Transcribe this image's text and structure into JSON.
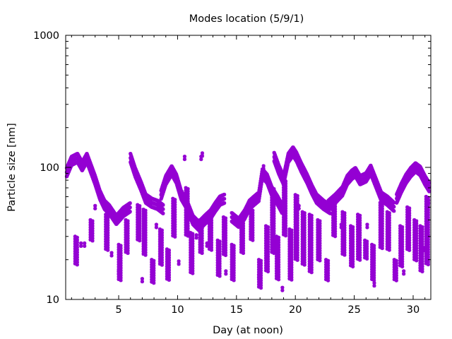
{
  "chart_data": {
    "type": "scatter",
    "title": "Modes location (5/9/1)",
    "xlabel": "Day (at noon)",
    "ylabel": "Particle size [nm]",
    "xlim": [
      0.5,
      31.5
    ],
    "ylim": [
      10,
      1000
    ],
    "yscale": "log",
    "grid": false,
    "legend": "none",
    "x_ticks": [
      5,
      10,
      15,
      20,
      25,
      30
    ],
    "x_tick_labels": [
      "5",
      "10",
      "15",
      "20",
      "25",
      "30"
    ],
    "y_ticks": [
      10,
      100,
      1000
    ],
    "y_tick_labels": [
      "10",
      "100",
      "1000"
    ],
    "marker_color": "#9400d3",
    "marker": "star",
    "series": [
      {
        "traces": [
          [
            [
              0.5,
              88
            ],
            [
              1.0,
              112
            ],
            [
              1.5,
              118
            ],
            [
              1.9,
              102
            ],
            [
              2.3,
              118
            ],
            [
              2.6,
              100
            ],
            [
              3.0,
              80
            ],
            [
              3.4,
              62
            ],
            [
              3.8,
              52
            ],
            [
              4.2,
              48
            ],
            [
              4.8,
              40
            ],
            [
              5.4,
              46
            ],
            [
              6.0,
              50
            ]
          ],
          [
            [
              6.0,
              118
            ],
            [
              6.4,
              92
            ],
            [
              6.9,
              72
            ],
            [
              7.3,
              58
            ],
            [
              7.8,
              54
            ],
            [
              8.3,
              52
            ],
            [
              8.8,
              48
            ]
          ],
          [
            [
              8.6,
              62
            ],
            [
              9.0,
              80
            ],
            [
              9.5,
              95
            ],
            [
              9.9,
              82
            ],
            [
              10.3,
              62
            ],
            [
              10.8,
              52
            ],
            [
              11.3,
              40
            ],
            [
              11.8,
              36
            ],
            [
              12.3,
              40
            ],
            [
              12.8,
              44
            ],
            [
              13.2,
              50
            ],
            [
              13.6,
              56
            ],
            [
              14.0,
              58
            ]
          ],
          [
            [
              14.6,
              42
            ],
            [
              15.2,
              38
            ],
            [
              15.7,
              44
            ],
            [
              16.1,
              52
            ],
            [
              16.5,
              56
            ],
            [
              16.9,
              60
            ],
            [
              17.2,
              90
            ],
            [
              17.6,
              82
            ],
            [
              18.0,
              66
            ],
            [
              18.5,
              56
            ],
            [
              18.9,
              48
            ]
          ],
          [
            [
              18.2,
              120
            ],
            [
              18.6,
              96
            ],
            [
              19.0,
              80
            ],
            [
              19.4,
              118
            ],
            [
              19.8,
              132
            ],
            [
              20.1,
              120
            ],
            [
              20.5,
              100
            ],
            [
              21.0,
              82
            ],
            [
              21.4,
              68
            ],
            [
              21.8,
              58
            ],
            [
              22.4,
              52
            ],
            [
              23.0,
              48
            ]
          ],
          [
            [
              22.8,
              52
            ],
            [
              23.4,
              58
            ],
            [
              24.0,
              66
            ],
            [
              24.4,
              80
            ],
            [
              24.8,
              88
            ],
            [
              25.1,
              92
            ],
            [
              25.5,
              80
            ],
            [
              26.0,
              84
            ],
            [
              26.4,
              96
            ],
            [
              26.9,
              74
            ],
            [
              27.3,
              60
            ],
            [
              27.8,
              56
            ],
            [
              28.4,
              50
            ]
          ],
          [
            [
              28.6,
              58
            ],
            [
              29.0,
              70
            ],
            [
              29.4,
              82
            ],
            [
              29.8,
              92
            ],
            [
              30.2,
              100
            ],
            [
              30.6,
              94
            ],
            [
              31.0,
              80
            ],
            [
              31.4,
              70
            ]
          ]
        ],
        "streaks": [
          [
            1.3,
            18,
            30
          ],
          [
            2.6,
            28,
            40
          ],
          [
            3.9,
            24,
            44
          ],
          [
            5.0,
            14,
            26
          ],
          [
            5.6,
            22,
            40
          ],
          [
            6.6,
            28,
            52
          ],
          [
            7.1,
            22,
            48
          ],
          [
            7.8,
            13,
            20
          ],
          [
            8.5,
            18,
            34
          ],
          [
            9.1,
            14,
            24
          ],
          [
            9.6,
            30,
            58
          ],
          [
            10.7,
            30,
            70
          ],
          [
            11.1,
            16,
            32
          ],
          [
            11.9,
            22,
            40
          ],
          [
            12.7,
            24,
            46
          ],
          [
            13.4,
            15,
            28
          ],
          [
            13.9,
            22,
            42
          ],
          [
            14.6,
            14,
            26
          ],
          [
            15.4,
            22,
            40
          ],
          [
            16.2,
            28,
            48
          ],
          [
            16.9,
            12,
            20
          ],
          [
            17.5,
            16,
            36
          ],
          [
            18.0,
            22,
            70
          ],
          [
            18.4,
            14,
            30
          ],
          [
            19.0,
            30,
            80
          ],
          [
            19.5,
            14,
            34
          ],
          [
            20.0,
            20,
            62
          ],
          [
            20.6,
            18,
            46
          ],
          [
            21.2,
            16,
            44
          ],
          [
            21.9,
            20,
            40
          ],
          [
            22.6,
            14,
            20
          ],
          [
            23.2,
            30,
            56
          ],
          [
            24.0,
            22,
            46
          ],
          [
            24.7,
            18,
            36
          ],
          [
            25.3,
            20,
            44
          ],
          [
            25.9,
            20,
            28
          ],
          [
            26.5,
            14,
            26
          ],
          [
            27.2,
            24,
            54
          ],
          [
            27.8,
            24,
            46
          ],
          [
            28.4,
            14,
            20
          ],
          [
            28.9,
            18,
            36
          ],
          [
            29.5,
            24,
            50
          ],
          [
            30.1,
            20,
            40
          ],
          [
            30.6,
            16,
            36
          ],
          [
            31.1,
            18,
            60
          ]
        ],
        "isolated": [
          [
            1.8,
            26
          ],
          [
            2.1,
            26
          ],
          [
            3.0,
            50
          ],
          [
            4.4,
            22
          ],
          [
            5.0,
            16
          ],
          [
            7.0,
            14
          ],
          [
            8.2,
            36
          ],
          [
            10.1,
            19
          ],
          [
            10.6,
            118
          ],
          [
            11.6,
            30
          ],
          [
            12.0,
            118
          ],
          [
            12.1,
            125
          ],
          [
            12.5,
            26
          ],
          [
            14.1,
            16
          ],
          [
            16.9,
            15
          ],
          [
            17.3,
            100
          ],
          [
            18.9,
            12
          ],
          [
            20.3,
            50
          ],
          [
            22.7,
            15
          ],
          [
            23.9,
            36
          ],
          [
            26.1,
            36
          ],
          [
            26.7,
            13
          ],
          [
            27.9,
            38
          ],
          [
            29.2,
            16
          ],
          [
            30.9,
            24
          ],
          [
            31.3,
            55
          ]
        ]
      }
    ]
  }
}
